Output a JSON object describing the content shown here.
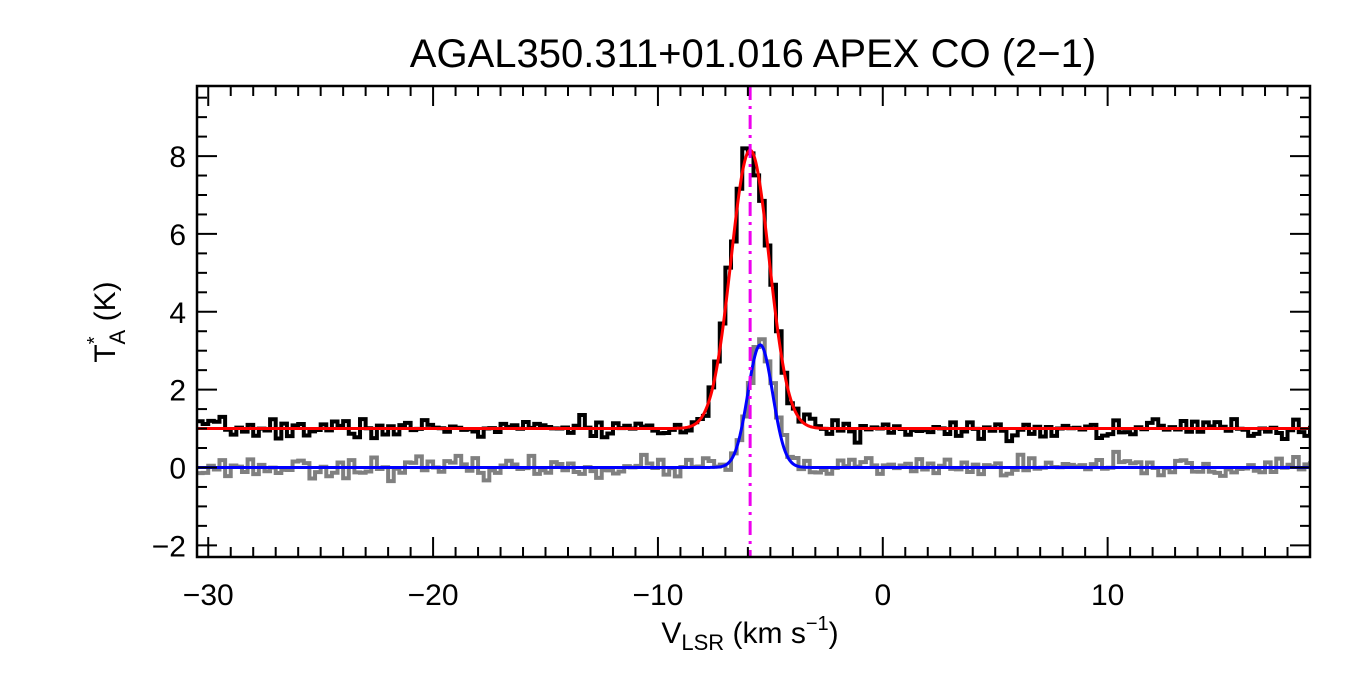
{
  "chart_data": {
    "type": "line",
    "title": "AGAL350.311+01.016  APEX CO (2−1)",
    "xlabel": {
      "main": "V",
      "sub": "LSR",
      "units": " (km s",
      "exp": "−1",
      "close": ")"
    },
    "ylabel": {
      "main": "T",
      "sup": "*",
      "sub": "A",
      "units": " (K)"
    },
    "xlim": [
      -30.5,
      19
    ],
    "ylim": [
      -2.3,
      9.8
    ],
    "xticks": [
      -30,
      -20,
      -10,
      0,
      10
    ],
    "xtick_labels": [
      "−30",
      "−20",
      "−10",
      "0",
      "10"
    ],
    "yticks": [
      -2,
      0,
      2,
      4,
      6,
      8
    ],
    "ytick_labels": [
      "−2",
      "0",
      "2",
      "4",
      "6",
      "8"
    ],
    "x_minor_step": 1,
    "y_minor_step": 0.5,
    "grid": false,
    "vline": {
      "x": -5.9,
      "color": "#ee00ee",
      "style": "dash-dot"
    },
    "series": [
      {
        "kind": "histogram-step",
        "color": "#000000",
        "x_start": -30.5,
        "x_step": 0.25,
        "baseline": 1.0,
        "noise": 0.13,
        "seed": 7,
        "peak": {
          "amp": 7.2,
          "center": -5.9,
          "sigma": 0.85
        }
      },
      {
        "kind": "histogram-step",
        "color": "#808080",
        "x_start": -30.5,
        "x_step": 0.25,
        "baseline": 0.0,
        "noise": 0.13,
        "seed": 23,
        "peak": {
          "amp": 3.2,
          "center": -5.4,
          "sigma": 0.55
        }
      },
      {
        "kind": "gaussian-fit",
        "color": "#ff0000",
        "baseline": 1.0,
        "peak": {
          "amp": 7.15,
          "center": -5.9,
          "sigma": 0.85
        }
      },
      {
        "kind": "gaussian-fit",
        "color": "#0000ff",
        "baseline": 0.0,
        "peak": {
          "amp": 3.15,
          "center": -5.45,
          "sigma": 0.55
        }
      }
    ]
  }
}
